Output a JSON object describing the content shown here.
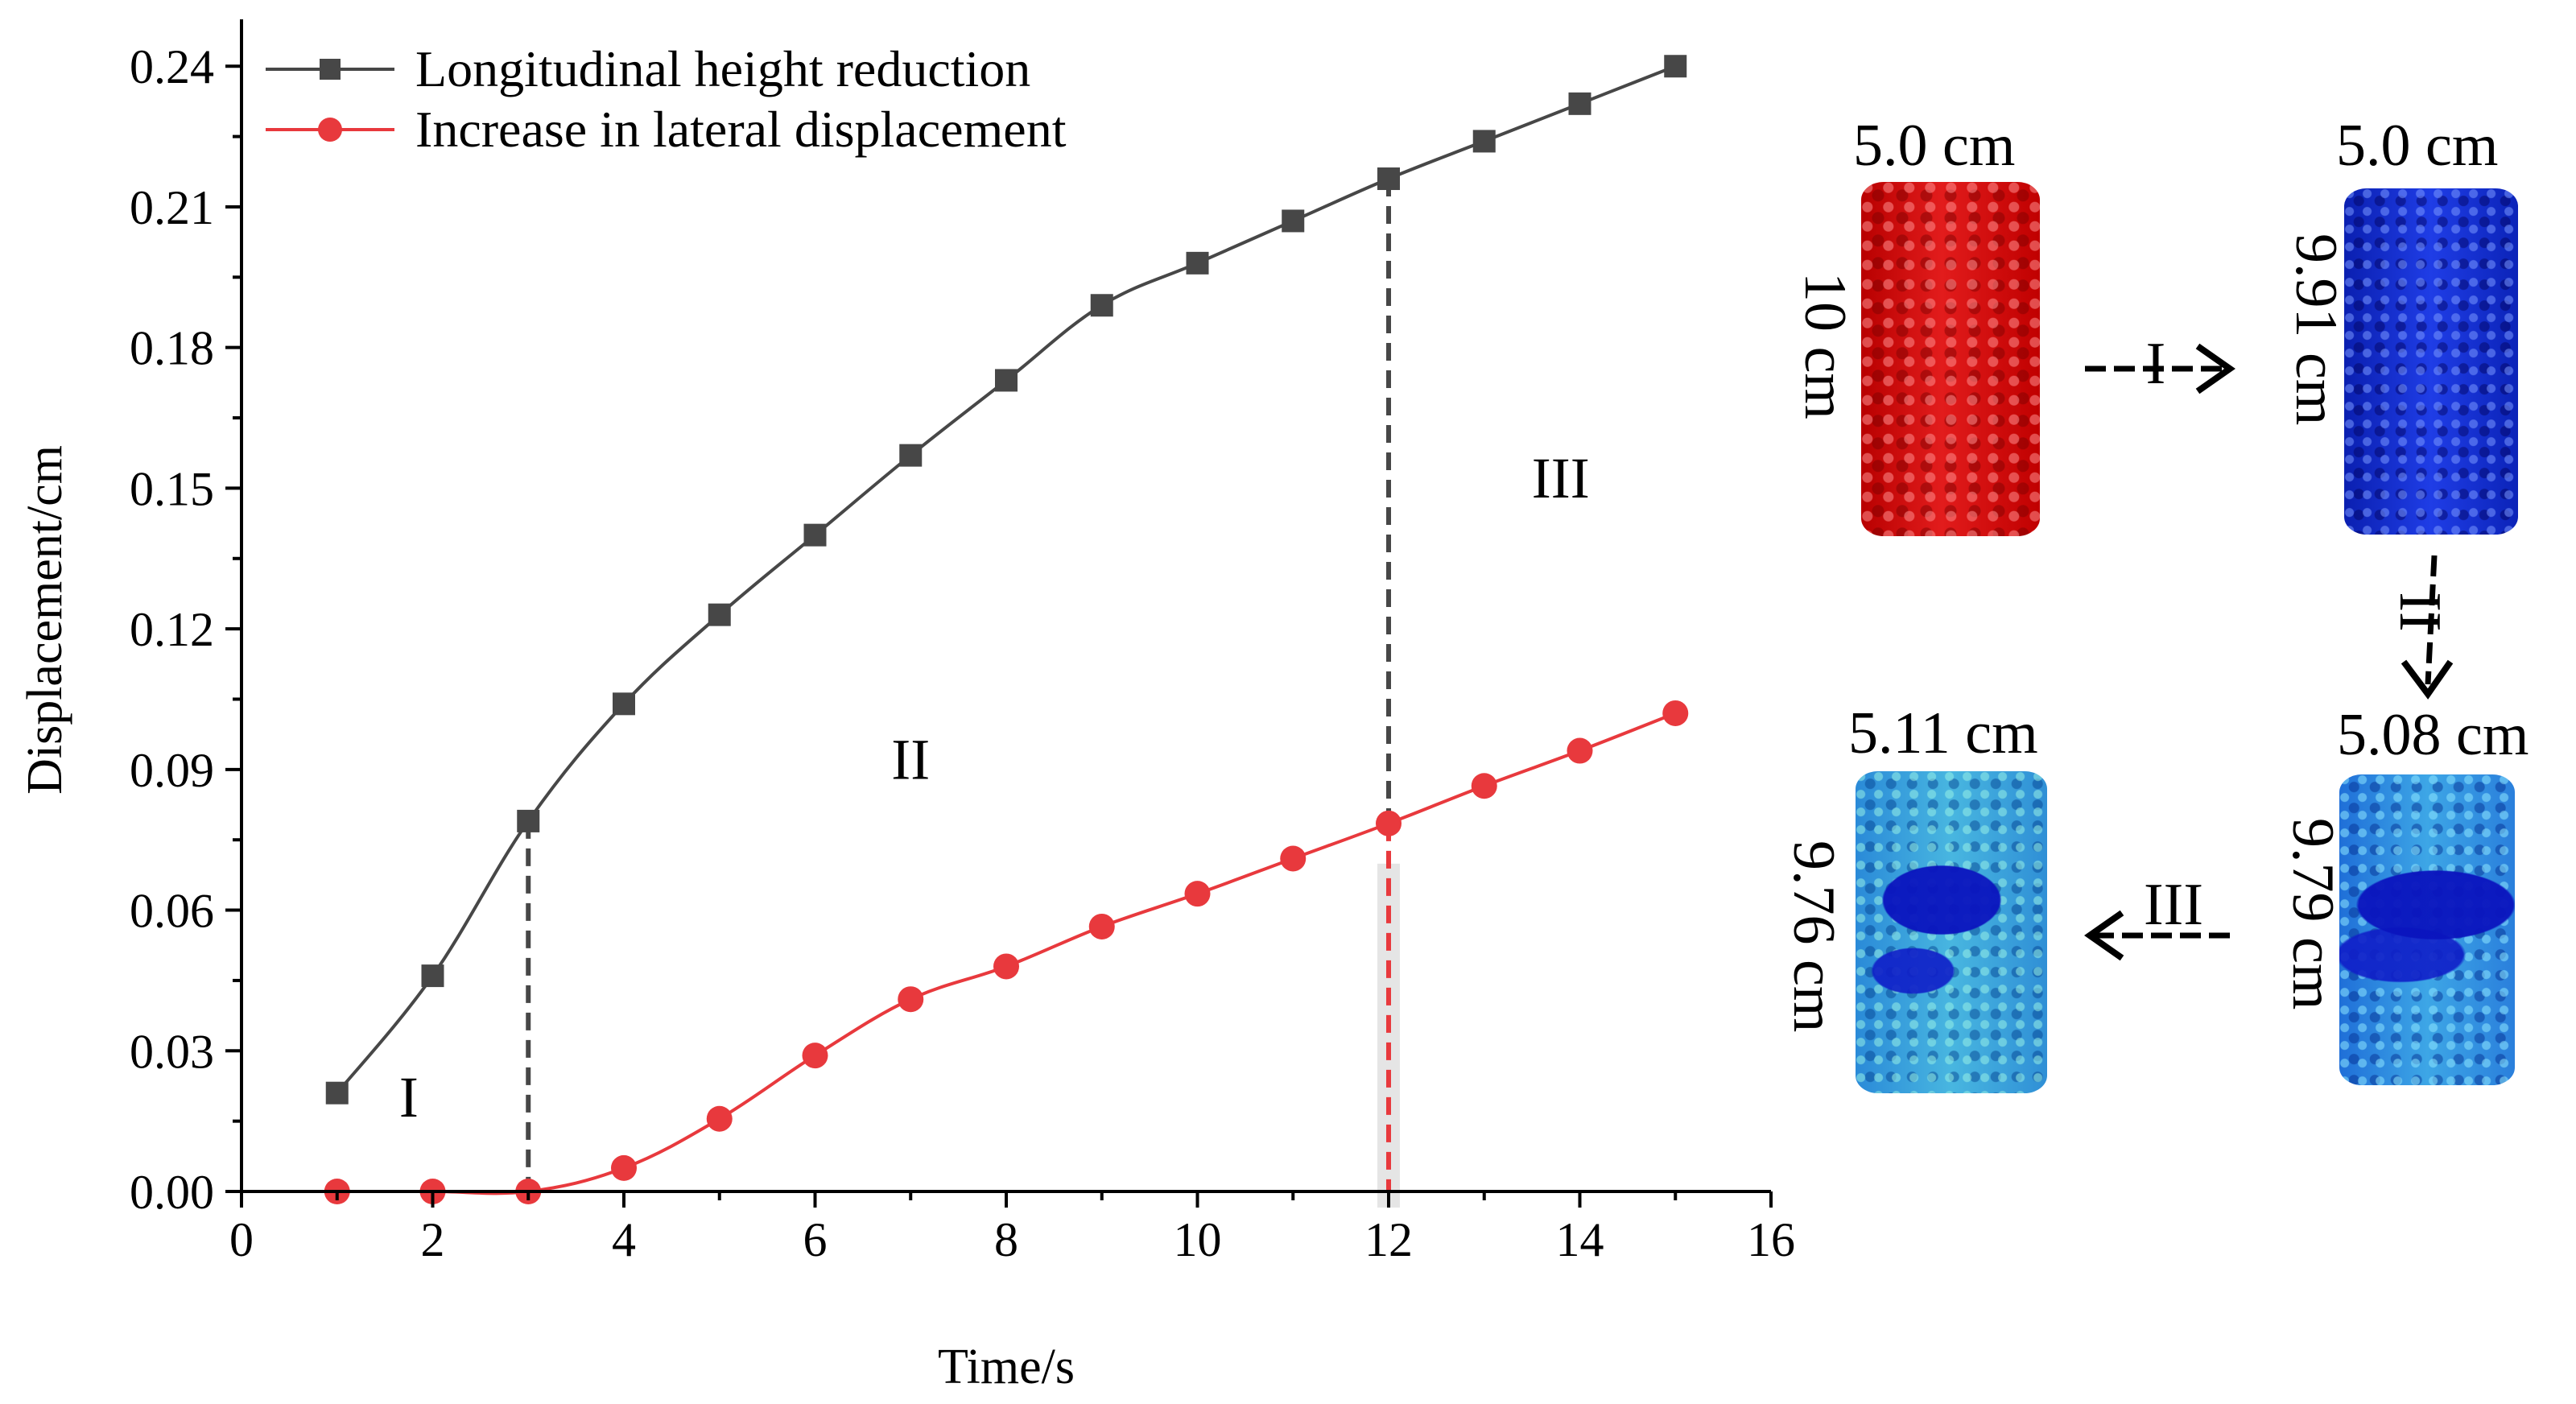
{
  "chart_data": {
    "type": "line",
    "title": "",
    "xlabel": "Time/s",
    "ylabel": "Displacement/cm",
    "xlim": [
      0,
      16
    ],
    "ylim": [
      0,
      0.25
    ],
    "xticks": [
      0,
      2,
      4,
      6,
      8,
      10,
      12,
      14,
      16
    ],
    "xtick_labels": [
      "0",
      "2",
      "4",
      "6",
      "8",
      "10",
      "12",
      "14",
      "16"
    ],
    "yticks": [
      0,
      0.03,
      0.06,
      0.09,
      0.12,
      0.15,
      0.18,
      0.21,
      0.24
    ],
    "ytick_labels": [
      "0.00",
      "0.03",
      "0.06",
      "0.09",
      "0.12",
      "0.15",
      "0.18",
      "0.21",
      "0.24"
    ],
    "legend_position": "top-left",
    "series": [
      {
        "name": "Longitudinal height reduction",
        "marker": "square",
        "color": "#474747",
        "x": [
          1,
          2,
          3,
          4,
          5,
          6,
          7,
          8,
          9,
          10,
          11,
          12,
          13,
          14,
          15
        ],
        "values": [
          0.021,
          0.046,
          0.079,
          0.104,
          0.123,
          0.14,
          0.157,
          0.173,
          0.189,
          0.198,
          0.207,
          0.216,
          0.224,
          0.232,
          0.24
        ]
      },
      {
        "name": "Increase in lateral displacement",
        "marker": "circle",
        "color": "#e8393d",
        "x": [
          1,
          2,
          3,
          4,
          5,
          6,
          7,
          8,
          9,
          10,
          11,
          12,
          13,
          14,
          15
        ],
        "values": [
          0.0,
          0.0,
          0.0,
          0.005,
          0.0155,
          0.029,
          0.041,
          0.048,
          0.0565,
          0.0635,
          0.071,
          0.0785,
          0.0865,
          0.094,
          0.102
        ]
      }
    ],
    "divider_lines": [
      {
        "x": 3,
        "color": "#474747",
        "y_top": 0.079
      },
      {
        "x": 12,
        "color": "#474747",
        "y_top": 0.216,
        "y_bottom": 0.0785
      },
      {
        "x": 12,
        "color": "#e8393d",
        "y_top": 0.0785
      }
    ],
    "stage_labels": [
      {
        "text": "I",
        "x": 1.75,
        "y": 0.016
      },
      {
        "text": "II",
        "x": 7.0,
        "y": 0.088
      },
      {
        "text": "III",
        "x": 13.8,
        "y": 0.148
      }
    ]
  },
  "specimens": [
    {
      "stage": "initial",
      "diameter": "5.0 cm",
      "height": "10 cm",
      "color": "#d61515"
    },
    {
      "stage": "after-I",
      "diameter": "5.0 cm",
      "height": "9.91 cm",
      "color": "#1533d0"
    },
    {
      "stage": "after-II",
      "diameter": "5.08 cm",
      "height": "9.79 cm",
      "color": "#2a7fdc"
    },
    {
      "stage": "after-III",
      "diameter": "5.11 cm",
      "height": "9.76 cm",
      "color": "#35a0dc"
    }
  ],
  "transitions": {
    "t1": "I",
    "t2": "II",
    "t3": "III"
  }
}
